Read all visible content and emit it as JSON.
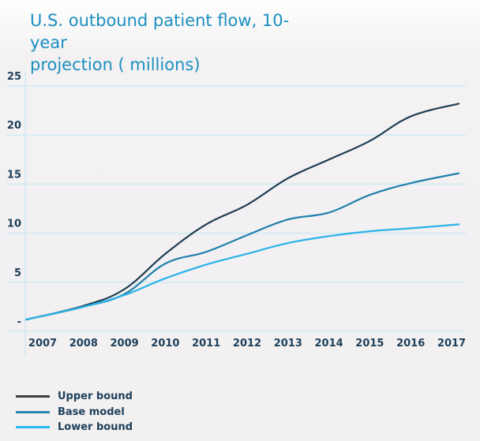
{
  "chart_data": {
    "type": "line",
    "title": "U.S. outbound patient flow, 10-year projection ( millions)",
    "xlabel": "",
    "ylabel": "",
    "x": [
      2007,
      2008,
      2009,
      2010,
      2011,
      2012,
      2013,
      2014,
      2015,
      2016,
      2017
    ],
    "ylim": [
      0,
      25
    ],
    "y_ticks": [
      {
        "value": 25,
        "label": "25"
      },
      {
        "value": 20,
        "label": "20"
      },
      {
        "value": 15,
        "label": "15"
      },
      {
        "value": 10,
        "label": "10"
      },
      {
        "value": 5,
        "label": "5"
      },
      {
        "value": 0,
        "label": "-"
      }
    ],
    "x_tick_labels": [
      "2007",
      "2008",
      "2009",
      "2010",
      "2011",
      "2012",
      "2013",
      "2014",
      "2015",
      "2016",
      "2017"
    ],
    "grid": "horizontal",
    "legend_position": "bottom-left",
    "series": [
      {
        "name": "Upper bound",
        "color": "#1f3d51",
        "values": [
          1.2,
          2.6,
          4.3,
          7.9,
          10.9,
          12.9,
          15.6,
          17.5,
          19.4,
          21.9,
          23.2
        ]
      },
      {
        "name": "Base model",
        "color": "#1f7fab",
        "values": [
          1.2,
          2.5,
          3.8,
          6.9,
          8.1,
          9.8,
          11.4,
          12.1,
          13.9,
          15.1,
          16.1
        ]
      },
      {
        "name": "Lower bound",
        "color": "#2bb3e8",
        "values": [
          1.2,
          2.5,
          3.7,
          5.4,
          6.8,
          7.9,
          9.0,
          9.7,
          10.2,
          10.5,
          10.9
        ]
      }
    ]
  },
  "title_lines": [
    "U.S. outbound patient flow, 10-year",
    "projection ( millions)"
  ],
  "legend": [
    {
      "label": "Upper bound",
      "color": "#3b3f43"
    },
    {
      "label": "Base model",
      "color": "#2a86b4"
    },
    {
      "label": "Lower bound",
      "color": "#27b9ef"
    }
  ]
}
